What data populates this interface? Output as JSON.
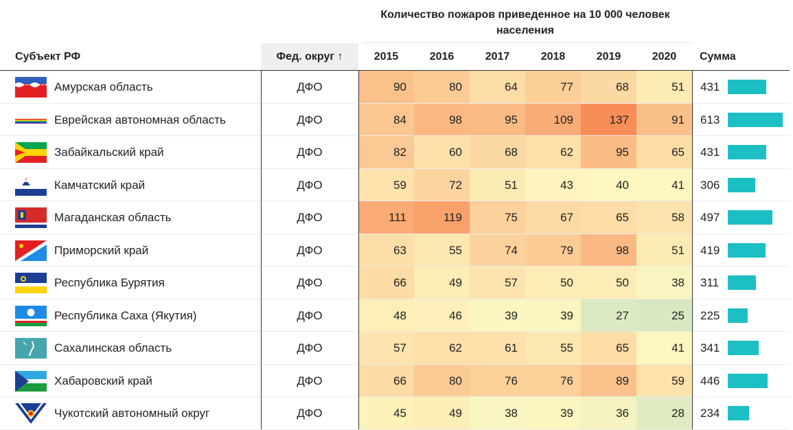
{
  "header": {
    "subject": "Субъект РФ",
    "district": "Фед. округ ↑",
    "group_title": "Количество пожаров приведенное на 10 000 человек населения",
    "sum": "Сумма"
  },
  "colors": {
    "bar": "#1bbfc4",
    "scale_low": "#cfe5c4",
    "scale_mid": "#fef7c0",
    "scale_high": "#f88a55"
  },
  "chart_data": {
    "type": "table",
    "title": "Количество пожаров приведенное на 10 000 человек населения",
    "columns": [
      "2015",
      "2016",
      "2017",
      "2018",
      "2019",
      "2020"
    ],
    "sum_bar_max": 613,
    "rows": [
      {
        "subject": "Амурская область",
        "district": "ДФО",
        "flag": "amur-oblast-flag",
        "values": [
          90,
          80,
          64,
          77,
          68,
          51
        ],
        "sum": 431
      },
      {
        "subject": "Еврейская автономная область",
        "district": "ДФО",
        "flag": "jewish-ao-flag",
        "values": [
          84,
          98,
          95,
          109,
          137,
          91
        ],
        "sum": 613
      },
      {
        "subject": "Забайкальский край",
        "district": "ДФО",
        "flag": "zabaykalsky-flag",
        "values": [
          82,
          60,
          68,
          62,
          95,
          65
        ],
        "sum": 431
      },
      {
        "subject": "Камчатский край",
        "district": "ДФО",
        "flag": "kamchatka-flag",
        "values": [
          59,
          72,
          51,
          43,
          40,
          41
        ],
        "sum": 306
      },
      {
        "subject": "Магаданская область",
        "district": "ДФО",
        "flag": "magadan-flag",
        "values": [
          111,
          119,
          75,
          67,
          65,
          58
        ],
        "sum": 497
      },
      {
        "subject": "Приморский край",
        "district": "ДФО",
        "flag": "primorsky-flag",
        "values": [
          63,
          55,
          74,
          79,
          98,
          51
        ],
        "sum": 419
      },
      {
        "subject": "Республика Бурятия",
        "district": "ДФО",
        "flag": "buryatia-flag",
        "values": [
          66,
          49,
          57,
          50,
          50,
          38
        ],
        "sum": 311
      },
      {
        "subject": "Республика Саха (Якутия)",
        "district": "ДФО",
        "flag": "sakha-flag",
        "values": [
          48,
          46,
          39,
          39,
          27,
          25
        ],
        "sum": 225
      },
      {
        "subject": "Сахалинская область",
        "district": "ДФО",
        "flag": "sakhalin-flag",
        "values": [
          57,
          62,
          61,
          55,
          65,
          41
        ],
        "sum": 341
      },
      {
        "subject": "Хабаровский край",
        "district": "ДФО",
        "flag": "khabarovsk-flag",
        "values": [
          66,
          80,
          76,
          76,
          89,
          59
        ],
        "sum": 446
      },
      {
        "subject": "Чукотский автономный округ",
        "district": "ДФО",
        "flag": "chukotka-flag",
        "values": [
          45,
          49,
          38,
          39,
          36,
          28
        ],
        "sum": 234
      }
    ]
  }
}
